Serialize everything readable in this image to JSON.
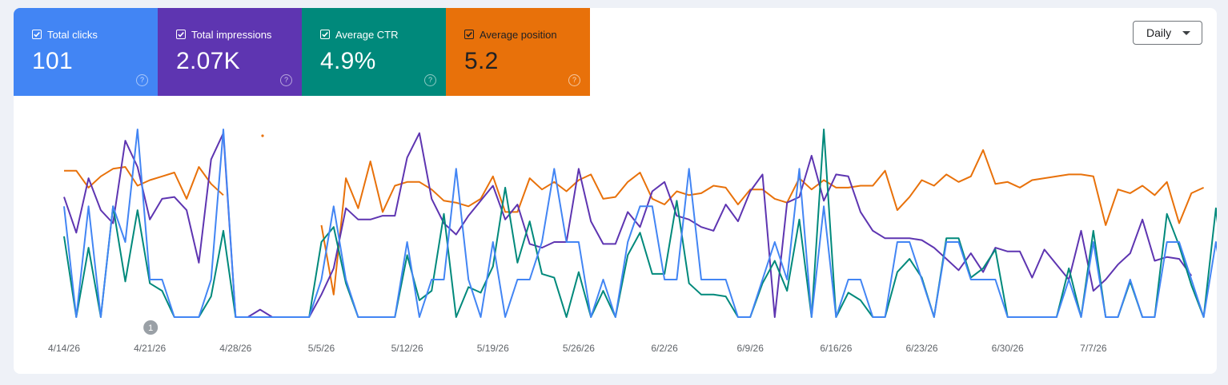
{
  "metrics": {
    "clicks": {
      "label": "Total clicks",
      "value": "101",
      "color": "#4285f4"
    },
    "impressions": {
      "label": "Total impressions",
      "value": "2.07K",
      "color": "#5e35b1"
    },
    "ctr": {
      "label": "Average CTR",
      "value": "4.9%",
      "color": "#00897b"
    },
    "position": {
      "label": "Average position",
      "value": "5.2",
      "color": "#e8710a"
    },
    "help_glyph": "?"
  },
  "controls": {
    "range_label": "Daily"
  },
  "annotation": {
    "label": "1",
    "date": "4/21/26"
  },
  "chart_data": {
    "type": "line",
    "start_date": "4/14/26",
    "x_tick_labels": [
      "4/14/26",
      "4/21/26",
      "4/28/26",
      "5/5/26",
      "5/12/26",
      "5/19/26",
      "5/26/26",
      "6/2/26",
      "6/9/26",
      "6/16/26",
      "6/23/26",
      "6/30/26",
      "7/7/26"
    ],
    "n_points": 92,
    "grid": false,
    "legend": "metric cards at top",
    "series": [
      {
        "name": "Total clicks",
        "color": "#4285f4",
        "y_range": [
          0,
          1
        ],
        "values": [
          0.59,
          0,
          0.59,
          0,
          0.59,
          0.4,
          1.0,
          0.2,
          0.2,
          0,
          0,
          0,
          0.2,
          1.0,
          0,
          0,
          0,
          0,
          0,
          0,
          0,
          0.2,
          0.59,
          0.2,
          0,
          0,
          0,
          0,
          0.4,
          0,
          0.2,
          0.2,
          0.79,
          0.2,
          0,
          0.4,
          0,
          0.2,
          0.2,
          0.4,
          0.79,
          0.4,
          0.4,
          0,
          0.2,
          0,
          0.4,
          0.59,
          0.59,
          0.2,
          0.2,
          0.79,
          0.2,
          0.2,
          0.2,
          0,
          0,
          0.2,
          0.4,
          0.2,
          0.79,
          0,
          0.59,
          0,
          0.2,
          0.2,
          0,
          0,
          0.4,
          0.4,
          0.2,
          0,
          0.4,
          0.4,
          0.2,
          0.2,
          0.2,
          0,
          0,
          0,
          0,
          0,
          0.2,
          0,
          0.4,
          0,
          0,
          0.2,
          0,
          0,
          0.4,
          0.4,
          0.2,
          0,
          0.4,
          0
        ]
      },
      {
        "name": "Total impressions",
        "color": "#5e35b1",
        "y_range": [
          0,
          1
        ],
        "values": [
          0.64,
          0.45,
          0.74,
          0.57,
          0.5,
          0.94,
          0.8,
          0.52,
          0.63,
          0.64,
          0.57,
          0.29,
          0.84,
          0.98,
          0,
          0,
          0.04,
          0,
          0,
          0,
          0,
          0.12,
          0.26,
          0.58,
          0.52,
          0.52,
          0.54,
          0.54,
          0.85,
          0.98,
          0.63,
          0.5,
          0.44,
          0.54,
          0.62,
          0.7,
          0.52,
          0.6,
          0.39,
          0.37,
          0.4,
          0.4,
          0.79,
          0.51,
          0.39,
          0.39,
          0.56,
          0.48,
          0.67,
          0.72,
          0.54,
          0.52,
          0.48,
          0.46,
          0.6,
          0.51,
          0.67,
          0.76,
          0.0,
          0.61,
          0.64,
          0.86,
          0.62,
          0.76,
          0.75,
          0.56,
          0.46,
          0.42,
          0.42,
          0.42,
          0.41,
          0.37,
          0.31,
          0.25,
          0.34,
          0.24,
          0.37,
          0.35,
          0.35,
          0.21,
          0.36,
          0.28,
          0.2,
          0.46,
          0.14,
          0.2,
          0.28,
          0.34,
          0.52,
          0.3,
          0.32,
          0.31,
          0.22
        ]
      },
      {
        "name": "Average CTR",
        "color": "#00897b",
        "y_range": [
          0,
          1
        ],
        "values": [
          0.43,
          0,
          0.37,
          0,
          0.59,
          0.19,
          0.57,
          0.18,
          0.14,
          0,
          0,
          0,
          0.11,
          0.46,
          0,
          0,
          0,
          0,
          0,
          0,
          0,
          0.4,
          0.48,
          0.18,
          0,
          0,
          0,
          0,
          0.33,
          0.09,
          0.14,
          0.55,
          0,
          0.16,
          0.13,
          0.27,
          0.69,
          0.29,
          0.51,
          0.23,
          0.21,
          0,
          0.24,
          0,
          0.14,
          0,
          0.33,
          0.45,
          0.23,
          0.23,
          0.62,
          0.18,
          0.12,
          0.12,
          0.11,
          0,
          0,
          0.18,
          0.3,
          0.14,
          0.52,
          0,
          1.0,
          0,
          0.13,
          0.09,
          0,
          0,
          0.24,
          0.31,
          0.21,
          0,
          0.42,
          0.42,
          0.21,
          0.26,
          0.36,
          0,
          0,
          0,
          0,
          0,
          0.26,
          0,
          0.46,
          0,
          0,
          0.19,
          0,
          0,
          0.55,
          0.38,
          0.17,
          0,
          0.58,
          0
        ]
      },
      {
        "name": "Average position",
        "color": "#e8710a",
        "y_range": [
          0,
          1
        ],
        "gaps": true,
        "values": [
          0.78,
          0.78,
          0.69,
          0.75,
          0.79,
          0.8,
          0.7,
          0.73,
          0.75,
          0.77,
          0.63,
          0.8,
          0.71,
          0.65,
          null,
          null,
          null,
          null,
          null,
          null,
          null,
          0.49,
          0.12,
          0.74,
          0.58,
          0.83,
          0.56,
          0.7,
          0.72,
          0.72,
          0.68,
          0.62,
          0.61,
          0.59,
          0.63,
          0.75,
          0.56,
          0.56,
          0.74,
          0.68,
          0.72,
          0.67,
          0.73,
          0.76,
          0.63,
          0.64,
          0.72,
          0.77,
          0.63,
          0.6,
          0.67,
          0.65,
          0.66,
          0.7,
          0.69,
          0.6,
          0.68,
          0.68,
          0.63,
          0.61,
          0.74,
          0.68,
          0.73,
          0.69,
          0.69,
          0.7,
          0.7,
          0.78,
          0.57,
          0.64,
          0.73,
          0.7,
          0.76,
          0.72,
          0.75,
          0.89,
          0.71,
          0.72,
          0.69,
          0.73,
          0.74,
          0.75,
          0.76,
          0.76,
          0.75,
          0.49,
          0.68,
          0.66,
          0.7,
          0.65,
          0.72,
          0.5,
          0.66,
          0.69
        ]
      }
    ]
  }
}
